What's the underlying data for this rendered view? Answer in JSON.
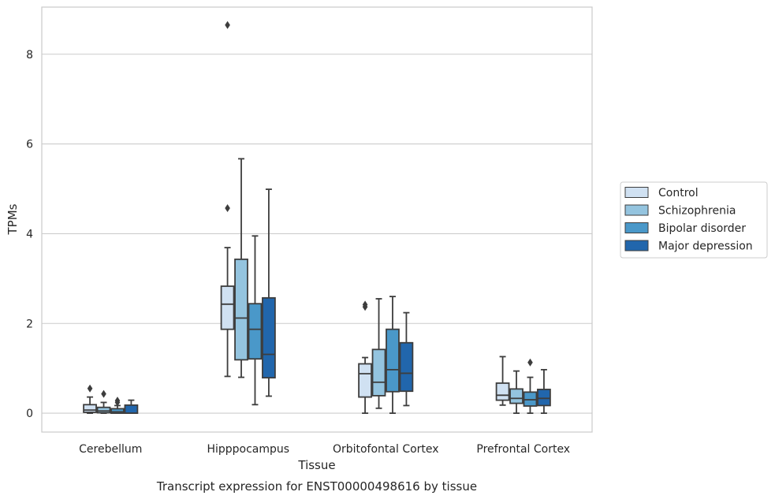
{
  "chart_data": {
    "type": "box",
    "caption": "Transcript expression for ENST00000498616 by tissue",
    "xlabel": "Tissue",
    "ylabel": "TPMs",
    "ylim": [
      -0.42,
      9.05
    ],
    "yticks": [
      0,
      2,
      4,
      6,
      8
    ],
    "grid": "horizontal",
    "legend_position": "right",
    "categories": [
      "Cerebellum",
      "Hipppocampus",
      "Orbitofontal Cortex",
      "Prefrontal Cortex"
    ],
    "series": [
      {
        "name": "Control",
        "color": "#d0e1f2",
        "boxes": [
          {
            "whislo": 0.0,
            "q1": 0.02,
            "med": 0.07,
            "q3": 0.19,
            "whishi": 0.36,
            "fliers": [
              0.55
            ]
          },
          {
            "whislo": 0.82,
            "q1": 1.87,
            "med": 2.43,
            "q3": 2.83,
            "whishi": 3.69,
            "fliers": [
              8.65,
              4.57
            ]
          },
          {
            "whislo": 0.0,
            "q1": 0.36,
            "med": 0.88,
            "q3": 1.1,
            "whishi": 1.24,
            "fliers": [
              2.42,
              2.37
            ]
          },
          {
            "whislo": 0.18,
            "q1": 0.29,
            "med": 0.4,
            "q3": 0.67,
            "whishi": 1.26,
            "fliers": []
          }
        ]
      },
      {
        "name": "Schizophrenia",
        "color": "#94c4df",
        "boxes": [
          {
            "whislo": 0.0,
            "q1": 0.01,
            "med": 0.05,
            "q3": 0.13,
            "whishi": 0.24,
            "fliers": [
              0.43
            ]
          },
          {
            "whislo": 0.8,
            "q1": 1.19,
            "med": 2.12,
            "q3": 3.43,
            "whishi": 5.67,
            "fliers": []
          },
          {
            "whislo": 0.11,
            "q1": 0.39,
            "med": 0.69,
            "q3": 1.42,
            "whishi": 2.55,
            "fliers": []
          },
          {
            "whislo": 0.0,
            "q1": 0.22,
            "med": 0.33,
            "q3": 0.54,
            "whishi": 0.94,
            "fliers": []
          }
        ]
      },
      {
        "name": "Bipolar disorder",
        "color": "#4a98c9",
        "boxes": [
          {
            "whislo": 0.0,
            "q1": 0.0,
            "med": 0.03,
            "q3": 0.1,
            "whishi": 0.17,
            "fliers": [
              0.28,
              0.24
            ]
          },
          {
            "whislo": 0.19,
            "q1": 1.21,
            "med": 1.87,
            "q3": 2.44,
            "whishi": 3.95,
            "fliers": []
          },
          {
            "whislo": 0.0,
            "q1": 0.48,
            "med": 0.97,
            "q3": 1.87,
            "whishi": 2.6,
            "fliers": []
          },
          {
            "whislo": 0.0,
            "q1": 0.16,
            "med": 0.3,
            "q3": 0.47,
            "whishi": 0.8,
            "fliers": [
              1.13
            ]
          }
        ]
      },
      {
        "name": "Major depression",
        "color": "#2166ac",
        "boxes": [
          {
            "whislo": 0.0,
            "q1": 0.0,
            "med": 0.0,
            "q3": 0.18,
            "whishi": 0.29,
            "fliers": []
          },
          {
            "whislo": 0.38,
            "q1": 0.79,
            "med": 1.31,
            "q3": 2.57,
            "whishi": 4.99,
            "fliers": []
          },
          {
            "whislo": 0.17,
            "q1": 0.49,
            "med": 0.89,
            "q3": 1.57,
            "whishi": 2.24,
            "fliers": []
          },
          {
            "whislo": 0.0,
            "q1": 0.17,
            "med": 0.33,
            "q3": 0.53,
            "whishi": 0.97,
            "fliers": []
          }
        ]
      }
    ]
  }
}
